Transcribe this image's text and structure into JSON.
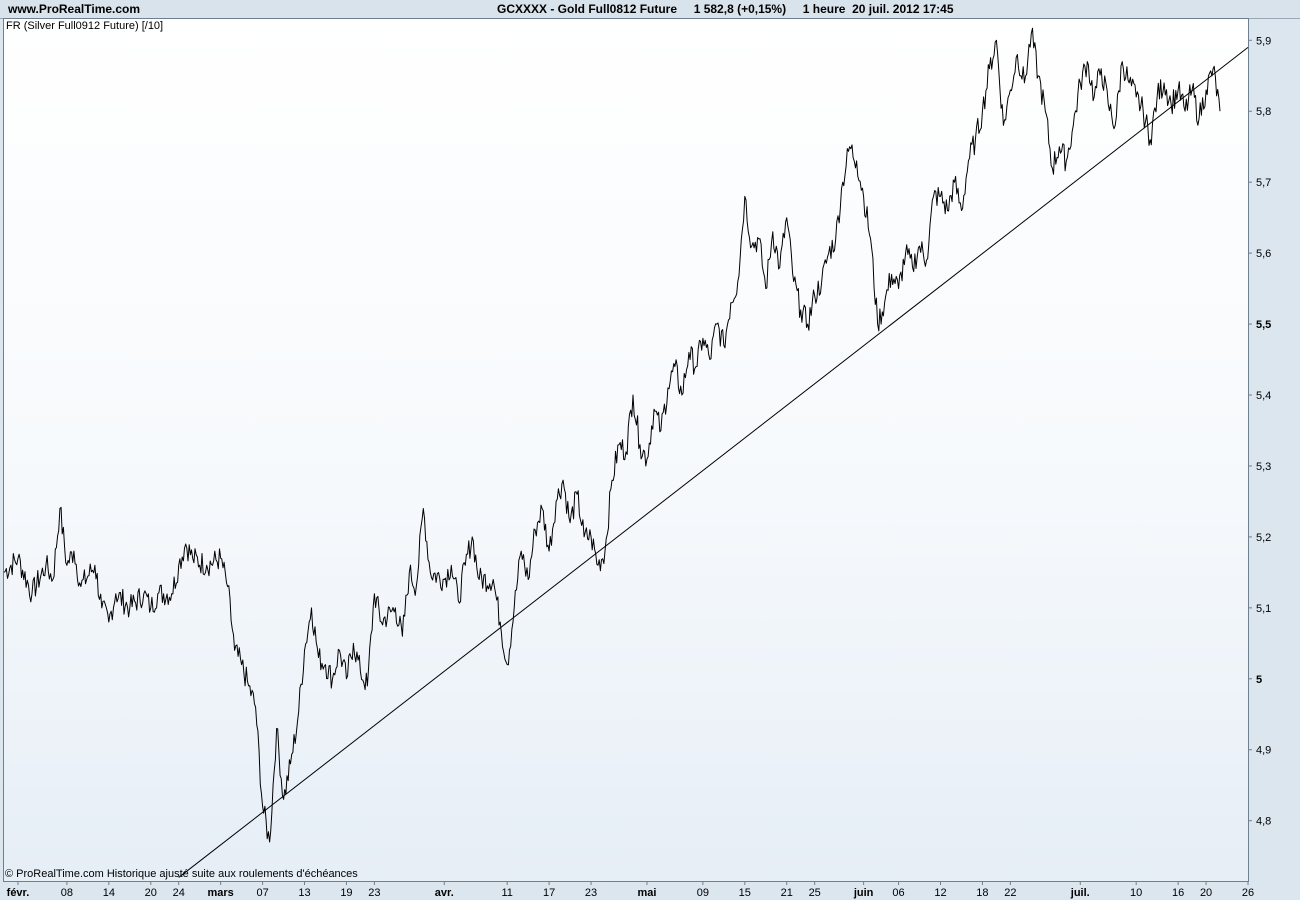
{
  "header": {
    "site": "www.ProRealTime.com",
    "title": "GCXXXX - Gold Full0812 Future     1 582,8 (+0,15%)     1 heure  20 juil. 2012 17:45"
  },
  "indicator_label": "FR (Silver Full0912 Future) [/10]",
  "footer_note": "© ProRealTime.com  Historique ajusté suite aux roulements d'échéances",
  "chart_data": {
    "type": "line",
    "title": "",
    "xlabel": "",
    "ylabel": "",
    "ylim": [
      4.715,
      5.93
    ],
    "yaxis_side": "right",
    "grid": false,
    "y_ticks": [
      {
        "value": 4.8,
        "label": "4,8",
        "bold": false
      },
      {
        "value": 4.9,
        "label": "4,9",
        "bold": false
      },
      {
        "value": 5.0,
        "label": "5",
        "bold": true
      },
      {
        "value": 5.1,
        "label": "5,1",
        "bold": false
      },
      {
        "value": 5.2,
        "label": "5,2",
        "bold": false
      },
      {
        "value": 5.3,
        "label": "5,3",
        "bold": false
      },
      {
        "value": 5.4,
        "label": "5,4",
        "bold": false
      },
      {
        "value": 5.5,
        "label": "5,5",
        "bold": true
      },
      {
        "value": 5.6,
        "label": "5,6",
        "bold": false
      },
      {
        "value": 5.7,
        "label": "5,7",
        "bold": false
      },
      {
        "value": 5.8,
        "label": "5,8",
        "bold": false
      },
      {
        "value": 5.9,
        "label": "5,9",
        "bold": false
      }
    ],
    "x_range": [
      "2012-01-30",
      "2012-07-26"
    ],
    "x_ticks": [
      {
        "date": "2012-02-01",
        "label": "févr.",
        "month": true
      },
      {
        "date": "2012-02-08",
        "label": "08",
        "month": false
      },
      {
        "date": "2012-02-14",
        "label": "14",
        "month": false
      },
      {
        "date": "2012-02-20",
        "label": "20",
        "month": false
      },
      {
        "date": "2012-02-24",
        "label": "24",
        "month": false
      },
      {
        "date": "2012-03-01",
        "label": "mars",
        "month": true
      },
      {
        "date": "2012-03-07",
        "label": "07",
        "month": false
      },
      {
        "date": "2012-03-13",
        "label": "13",
        "month": false
      },
      {
        "date": "2012-03-19",
        "label": "19",
        "month": false
      },
      {
        "date": "2012-03-23",
        "label": "23",
        "month": false
      },
      {
        "date": "2012-04-02",
        "label": "avr.",
        "month": true
      },
      {
        "date": "2012-04-11",
        "label": "11",
        "month": false
      },
      {
        "date": "2012-04-17",
        "label": "17",
        "month": false
      },
      {
        "date": "2012-04-23",
        "label": "23",
        "month": false
      },
      {
        "date": "2012-05-01",
        "label": "mai",
        "month": true
      },
      {
        "date": "2012-05-09",
        "label": "09",
        "month": false
      },
      {
        "date": "2012-05-15",
        "label": "15",
        "month": false
      },
      {
        "date": "2012-05-21",
        "label": "21",
        "month": false
      },
      {
        "date": "2012-05-25",
        "label": "25",
        "month": false
      },
      {
        "date": "2012-06-01",
        "label": "juin",
        "month": true
      },
      {
        "date": "2012-06-06",
        "label": "06",
        "month": false
      },
      {
        "date": "2012-06-12",
        "label": "12",
        "month": false
      },
      {
        "date": "2012-06-18",
        "label": "18",
        "month": false
      },
      {
        "date": "2012-06-22",
        "label": "22",
        "month": false
      },
      {
        "date": "2012-07-02",
        "label": "juil.",
        "month": true
      },
      {
        "date": "2012-07-10",
        "label": "10",
        "month": false
      },
      {
        "date": "2012-07-16",
        "label": "16",
        "month": false
      },
      {
        "date": "2012-07-20",
        "label": "20",
        "month": false
      },
      {
        "date": "2012-07-26",
        "label": "26",
        "month": false
      }
    ],
    "series": [
      {
        "color": "#000000",
        "points": [
          [
            "2012-01-30",
            5.15
          ],
          [
            "2012-02-01",
            5.17
          ],
          [
            "2012-02-03",
            5.12
          ],
          [
            "2012-02-05",
            5.16
          ],
          [
            "2012-02-06",
            5.14
          ],
          [
            "2012-02-07",
            5.24
          ],
          [
            "2012-02-08",
            5.16
          ],
          [
            "2012-02-09",
            5.18
          ],
          [
            "2012-02-10",
            5.13
          ],
          [
            "2012-02-12",
            5.16
          ],
          [
            "2012-02-13",
            5.1
          ],
          [
            "2012-02-14",
            5.08
          ],
          [
            "2012-02-15",
            5.12
          ],
          [
            "2012-02-17",
            5.1
          ],
          [
            "2012-02-19",
            5.12
          ],
          [
            "2012-02-20",
            5.1
          ],
          [
            "2012-02-21",
            5.12
          ],
          [
            "2012-02-23",
            5.12
          ],
          [
            "2012-02-24",
            5.16
          ],
          [
            "2012-02-25",
            5.19
          ],
          [
            "2012-02-26",
            5.17
          ],
          [
            "2012-02-28",
            5.16
          ],
          [
            "2012-03-01",
            5.17
          ],
          [
            "2012-03-02",
            5.13
          ],
          [
            "2012-03-03",
            5.04
          ],
          [
            "2012-03-04",
            5.02
          ],
          [
            "2012-03-05",
            4.99
          ],
          [
            "2012-03-06",
            4.96
          ],
          [
            "2012-03-07",
            4.82
          ],
          [
            "2012-03-08",
            4.77
          ],
          [
            "2012-03-09",
            4.93
          ],
          [
            "2012-03-10",
            4.83
          ],
          [
            "2012-03-11",
            4.88
          ],
          [
            "2012-03-12",
            4.94
          ],
          [
            "2012-03-13",
            5.04
          ],
          [
            "2012-03-14",
            5.1
          ],
          [
            "2012-03-15",
            5.03
          ],
          [
            "2012-03-16",
            5.02
          ],
          [
            "2012-03-17",
            5.0
          ],
          [
            "2012-03-18",
            5.04
          ],
          [
            "2012-03-19",
            5.0
          ],
          [
            "2012-03-20",
            5.05
          ],
          [
            "2012-03-21",
            5.01
          ],
          [
            "2012-03-22",
            4.99
          ],
          [
            "2012-03-23",
            5.12
          ],
          [
            "2012-03-24",
            5.08
          ],
          [
            "2012-03-26",
            5.1
          ],
          [
            "2012-03-27",
            5.06
          ],
          [
            "2012-03-28",
            5.15
          ],
          [
            "2012-03-29",
            5.13
          ],
          [
            "2012-03-30",
            5.24
          ],
          [
            "2012-03-31",
            5.15
          ],
          [
            "2012-04-02",
            5.14
          ],
          [
            "2012-04-03",
            5.16
          ],
          [
            "2012-04-04",
            5.11
          ],
          [
            "2012-04-05",
            5.16
          ],
          [
            "2012-04-06",
            5.2
          ],
          [
            "2012-04-07",
            5.14
          ],
          [
            "2012-04-09",
            5.14
          ],
          [
            "2012-04-10",
            5.08
          ],
          [
            "2012-04-11",
            5.02
          ],
          [
            "2012-04-12",
            5.1
          ],
          [
            "2012-04-13",
            5.18
          ],
          [
            "2012-04-14",
            5.14
          ],
          [
            "2012-04-15",
            5.21
          ],
          [
            "2012-04-16",
            5.24
          ],
          [
            "2012-04-17",
            5.18
          ],
          [
            "2012-04-18",
            5.25
          ],
          [
            "2012-04-19",
            5.28
          ],
          [
            "2012-04-20",
            5.22
          ],
          [
            "2012-04-21",
            5.26
          ],
          [
            "2012-04-22",
            5.2
          ],
          [
            "2012-04-23",
            5.2
          ],
          [
            "2012-04-24",
            5.16
          ],
          [
            "2012-04-25",
            5.18
          ],
          [
            "2012-04-26",
            5.28
          ],
          [
            "2012-04-27",
            5.33
          ],
          [
            "2012-04-28",
            5.32
          ],
          [
            "2012-04-29",
            5.4
          ],
          [
            "2012-04-30",
            5.33
          ],
          [
            "2012-05-01",
            5.31
          ],
          [
            "2012-05-02",
            5.38
          ],
          [
            "2012-05-03",
            5.35
          ],
          [
            "2012-05-04",
            5.41
          ],
          [
            "2012-05-05",
            5.44
          ],
          [
            "2012-05-06",
            5.4
          ],
          [
            "2012-05-07",
            5.46
          ],
          [
            "2012-05-08",
            5.44
          ],
          [
            "2012-05-09",
            5.48
          ],
          [
            "2012-05-10",
            5.45
          ],
          [
            "2012-05-11",
            5.5
          ],
          [
            "2012-05-12",
            5.47
          ],
          [
            "2012-05-13",
            5.53
          ],
          [
            "2012-05-14",
            5.56
          ],
          [
            "2012-05-15",
            5.68
          ],
          [
            "2012-05-16",
            5.61
          ],
          [
            "2012-05-17",
            5.62
          ],
          [
            "2012-05-18",
            5.55
          ],
          [
            "2012-05-19",
            5.63
          ],
          [
            "2012-05-20",
            5.58
          ],
          [
            "2012-05-21",
            5.65
          ],
          [
            "2012-05-22",
            5.56
          ],
          [
            "2012-05-23",
            5.52
          ],
          [
            "2012-05-24",
            5.5
          ],
          [
            "2012-05-25",
            5.54
          ],
          [
            "2012-05-26",
            5.56
          ],
          [
            "2012-05-27",
            5.6
          ],
          [
            "2012-05-28",
            5.62
          ],
          [
            "2012-05-29",
            5.7
          ],
          [
            "2012-05-30",
            5.75
          ],
          [
            "2012-05-31",
            5.73
          ],
          [
            "2012-06-01",
            5.68
          ],
          [
            "2012-06-02",
            5.62
          ],
          [
            "2012-06-03",
            5.5
          ],
          [
            "2012-06-04",
            5.53
          ],
          [
            "2012-06-05",
            5.57
          ],
          [
            "2012-06-06",
            5.55
          ],
          [
            "2012-06-07",
            5.6
          ],
          [
            "2012-06-08",
            5.58
          ],
          [
            "2012-06-09",
            5.61
          ],
          [
            "2012-06-10",
            5.59
          ],
          [
            "2012-06-11",
            5.68
          ],
          [
            "2012-06-12",
            5.68
          ],
          [
            "2012-06-13",
            5.66
          ],
          [
            "2012-06-14",
            5.7
          ],
          [
            "2012-06-15",
            5.66
          ],
          [
            "2012-06-16",
            5.73
          ],
          [
            "2012-06-17",
            5.76
          ],
          [
            "2012-06-18",
            5.8
          ],
          [
            "2012-06-19",
            5.86
          ],
          [
            "2012-06-20",
            5.9
          ],
          [
            "2012-06-21",
            5.78
          ],
          [
            "2012-06-22",
            5.83
          ],
          [
            "2012-06-23",
            5.88
          ],
          [
            "2012-06-24",
            5.84
          ],
          [
            "2012-06-25",
            5.91
          ],
          [
            "2012-06-26",
            5.85
          ],
          [
            "2012-06-27",
            5.8
          ],
          [
            "2012-06-28",
            5.72
          ],
          [
            "2012-06-29",
            5.75
          ],
          [
            "2012-06-30",
            5.73
          ],
          [
            "2012-07-01",
            5.78
          ],
          [
            "2012-07-02",
            5.84
          ],
          [
            "2012-07-03",
            5.87
          ],
          [
            "2012-07-04",
            5.82
          ],
          [
            "2012-07-05",
            5.86
          ],
          [
            "2012-07-06",
            5.81
          ],
          [
            "2012-07-07",
            5.78
          ],
          [
            "2012-07-08",
            5.87
          ],
          [
            "2012-07-09",
            5.84
          ],
          [
            "2012-07-10",
            5.82
          ],
          [
            "2012-07-11",
            5.8
          ],
          [
            "2012-07-12",
            5.76
          ],
          [
            "2012-07-13",
            5.82
          ],
          [
            "2012-07-14",
            5.84
          ],
          [
            "2012-07-15",
            5.81
          ],
          [
            "2012-07-16",
            5.83
          ],
          [
            "2012-07-17",
            5.8
          ],
          [
            "2012-07-18",
            5.83
          ],
          [
            "2012-07-19",
            5.79
          ],
          [
            "2012-07-20",
            5.83
          ],
          [
            "2012-07-21",
            5.86
          ],
          [
            "2012-07-22",
            5.8
          ]
        ]
      }
    ],
    "trendline": {
      "color": "#000000",
      "points": [
        [
          "2012-02-24",
          4.72
        ],
        [
          "2012-07-26",
          5.89
        ]
      ]
    }
  }
}
